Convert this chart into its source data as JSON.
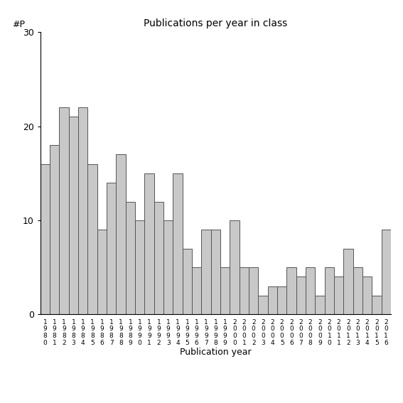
{
  "categories": [
    "1980",
    "1981",
    "1982",
    "1983",
    "1984",
    "1985",
    "1986",
    "1987",
    "1988",
    "1989",
    "1990",
    "1991",
    "1992",
    "1993",
    "1994",
    "1995",
    "1996",
    "1997",
    "1998",
    "1999",
    "2000",
    "2001",
    "2002",
    "2003",
    "2004",
    "2005",
    "2006",
    "2007",
    "2008",
    "2009",
    "2010",
    "2011",
    "2012",
    "2013",
    "2014",
    "2015",
    "2016"
  ],
  "values": [
    16,
    18,
    22,
    21,
    22,
    16,
    9,
    14,
    17,
    12,
    10,
    15,
    12,
    10,
    15,
    7,
    5,
    9,
    9,
    5,
    10,
    5,
    5,
    2,
    3,
    3,
    5,
    4,
    5,
    2,
    5,
    4,
    7,
    5,
    4,
    2,
    9
  ],
  "title": "Publications per year in class",
  "xlabel": "Publication year",
  "ylabel": "#P",
  "ylim": [
    0,
    30
  ],
  "yticks": [
    0,
    10,
    20,
    30
  ],
  "bar_color": "#c8c8c8",
  "bar_edge_color": "#555555",
  "background_color": "#ffffff"
}
